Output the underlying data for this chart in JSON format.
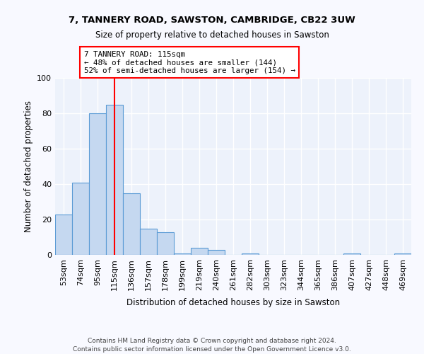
{
  "title1": "7, TANNERY ROAD, SAWSTON, CAMBRIDGE, CB22 3UW",
  "title2": "Size of property relative to detached houses in Sawston",
  "xlabel": "Distribution of detached houses by size in Sawston",
  "ylabel": "Number of detached properties",
  "categories": [
    "53sqm",
    "74sqm",
    "95sqm",
    "115sqm",
    "136sqm",
    "157sqm",
    "178sqm",
    "199sqm",
    "219sqm",
    "240sqm",
    "261sqm",
    "282sqm",
    "303sqm",
    "323sqm",
    "344sqm",
    "365sqm",
    "386sqm",
    "407sqm",
    "427sqm",
    "448sqm",
    "469sqm"
  ],
  "values": [
    23,
    41,
    80,
    85,
    35,
    15,
    13,
    1,
    4,
    3,
    0,
    1,
    0,
    0,
    0,
    0,
    0,
    1,
    0,
    0,
    1
  ],
  "bar_color": "#c5d8f0",
  "bar_edge_color": "#5b9bd5",
  "red_line_index": 3,
  "red_line_label": "7 TANNERY ROAD: 115sqm",
  "annotation_line2": "← 48% of detached houses are smaller (144)",
  "annotation_line3": "52% of semi-detached houses are larger (154) →",
  "ylim": [
    0,
    100
  ],
  "yticks": [
    0,
    20,
    40,
    60,
    80,
    100
  ],
  "background_color": "#edf2fb",
  "grid_color": "#ffffff",
  "fig_facecolor": "#f8f9ff",
  "footer1": "Contains HM Land Registry data © Crown copyright and database right 2024.",
  "footer2": "Contains public sector information licensed under the Open Government Licence v3.0."
}
